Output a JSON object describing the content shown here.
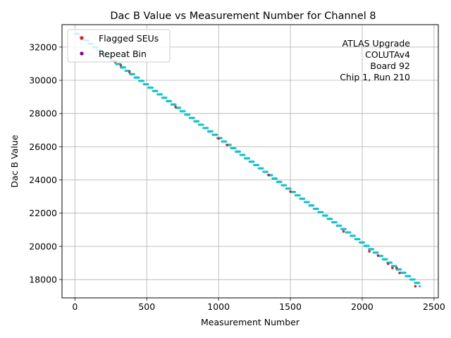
{
  "chart_data": {
    "type": "scatter",
    "title": "Dac B Value vs Measurement Number for Channel 8",
    "xlabel": "Measurement Number",
    "ylabel": "Dac B Value",
    "xlim": [
      -90,
      2530
    ],
    "ylim": [
      16900,
      33350
    ],
    "xticks": [
      0,
      500,
      1000,
      1500,
      2000,
      2500
    ],
    "xtick_labels": [
      "0",
      "500",
      "1000",
      "1500",
      "2000",
      "2500"
    ],
    "yticks": [
      18000,
      20000,
      22000,
      24000,
      26000,
      28000,
      30000,
      32000
    ],
    "ytick_labels": [
      "18000",
      "20000",
      "22000",
      "24000",
      "26000",
      "28000",
      "30000",
      "32000"
    ],
    "grid": true,
    "legend_position": "top-left",
    "legend": [
      {
        "label": "Flagged SEUs",
        "color": "#d62728"
      },
      {
        "label": "Repeat Bin",
        "color": "#800080"
      }
    ],
    "annotation": [
      "ATLAS Upgrade",
      "COLUTAv4",
      "Board 92",
      "Chip 1, Run 210"
    ],
    "series": [
      {
        "name": "Dac B Value",
        "color": "#17c3c9",
        "segments": [
          {
            "x0": 0,
            "x1": 2400,
            "step": 4,
            "y0": 32800,
            "y1": 17600,
            "stair_len": 32
          }
        ]
      },
      {
        "name": "Flagged SEUs",
        "color": "#d62728",
        "x": [
          40,
          280,
          320,
          380,
          700,
          1000,
          1060,
          1350,
          1500,
          1870,
          2050,
          2110,
          2180,
          2210,
          2240,
          2260,
          2370
        ],
        "y": [
          32600,
          31100,
          30900,
          30500,
          28400,
          26500,
          26100,
          24300,
          23300,
          20900,
          19700,
          19450,
          18950,
          18700,
          18700,
          18400,
          17600
        ]
      },
      {
        "name": "Repeat Bin",
        "color": "#800080",
        "x": [],
        "y": []
      }
    ]
  }
}
